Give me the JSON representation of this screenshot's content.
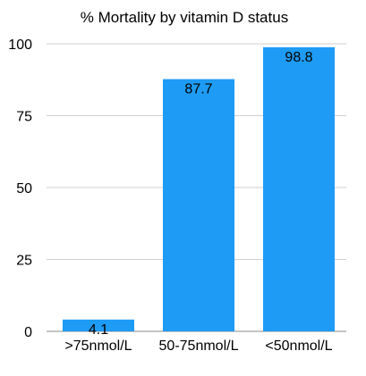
{
  "chart_data": {
    "type": "bar",
    "title": "% Mortality by vitamin D status",
    "xlabel": "",
    "ylabel": "",
    "categories": [
      ">75nmol/L",
      "50-75nmol/L",
      "<50nmol/L"
    ],
    "values": [
      4.1,
      87.7,
      98.8
    ],
    "value_labels": [
      "4.1",
      "87.7",
      "98.8"
    ],
    "ylim": [
      0,
      100
    ],
    "yticks": [
      0,
      25,
      50,
      75,
      100
    ],
    "ytick_labels": [
      "0",
      "25",
      "50",
      "75",
      "100"
    ],
    "grid": true,
    "legend": "none",
    "bar_color": "#1e9bf5"
  }
}
